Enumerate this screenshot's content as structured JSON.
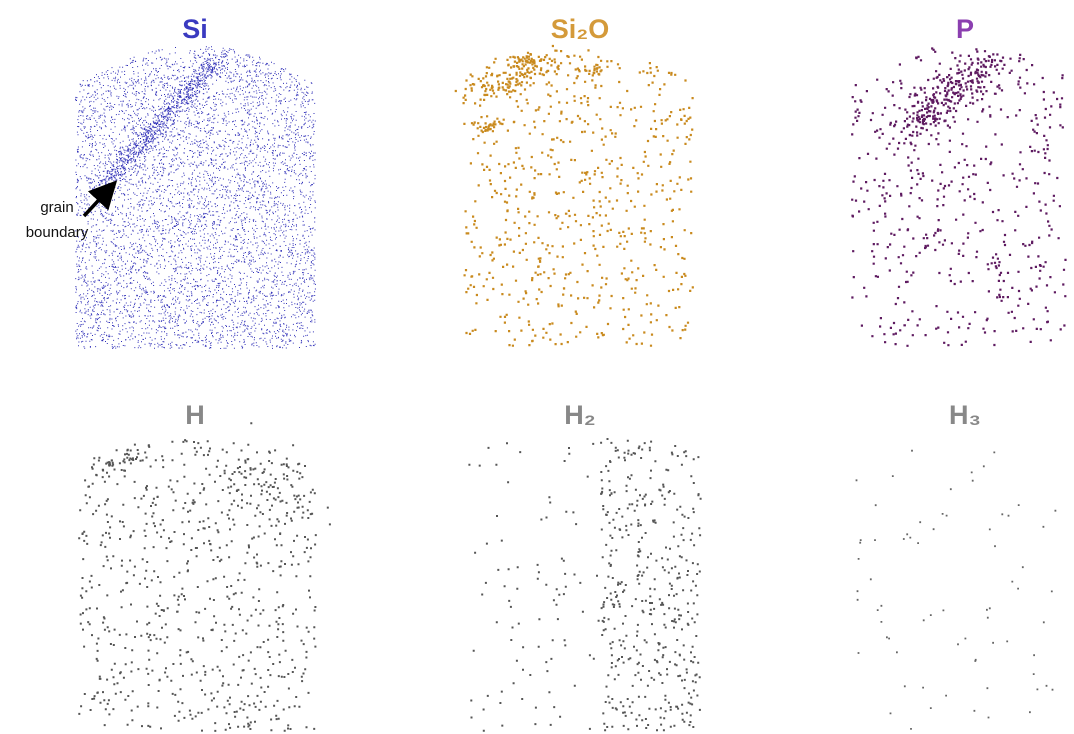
{
  "panels": [
    {
      "title": "Si"
    },
    {
      "title": "Si₂O"
    },
    {
      "title": "P"
    },
    {
      "title": "H"
    },
    {
      "title": "H₂"
    },
    {
      "title": "H₃"
    }
  ],
  "annotation": {
    "lines": [
      "grain",
      "boundary"
    ]
  }
}
